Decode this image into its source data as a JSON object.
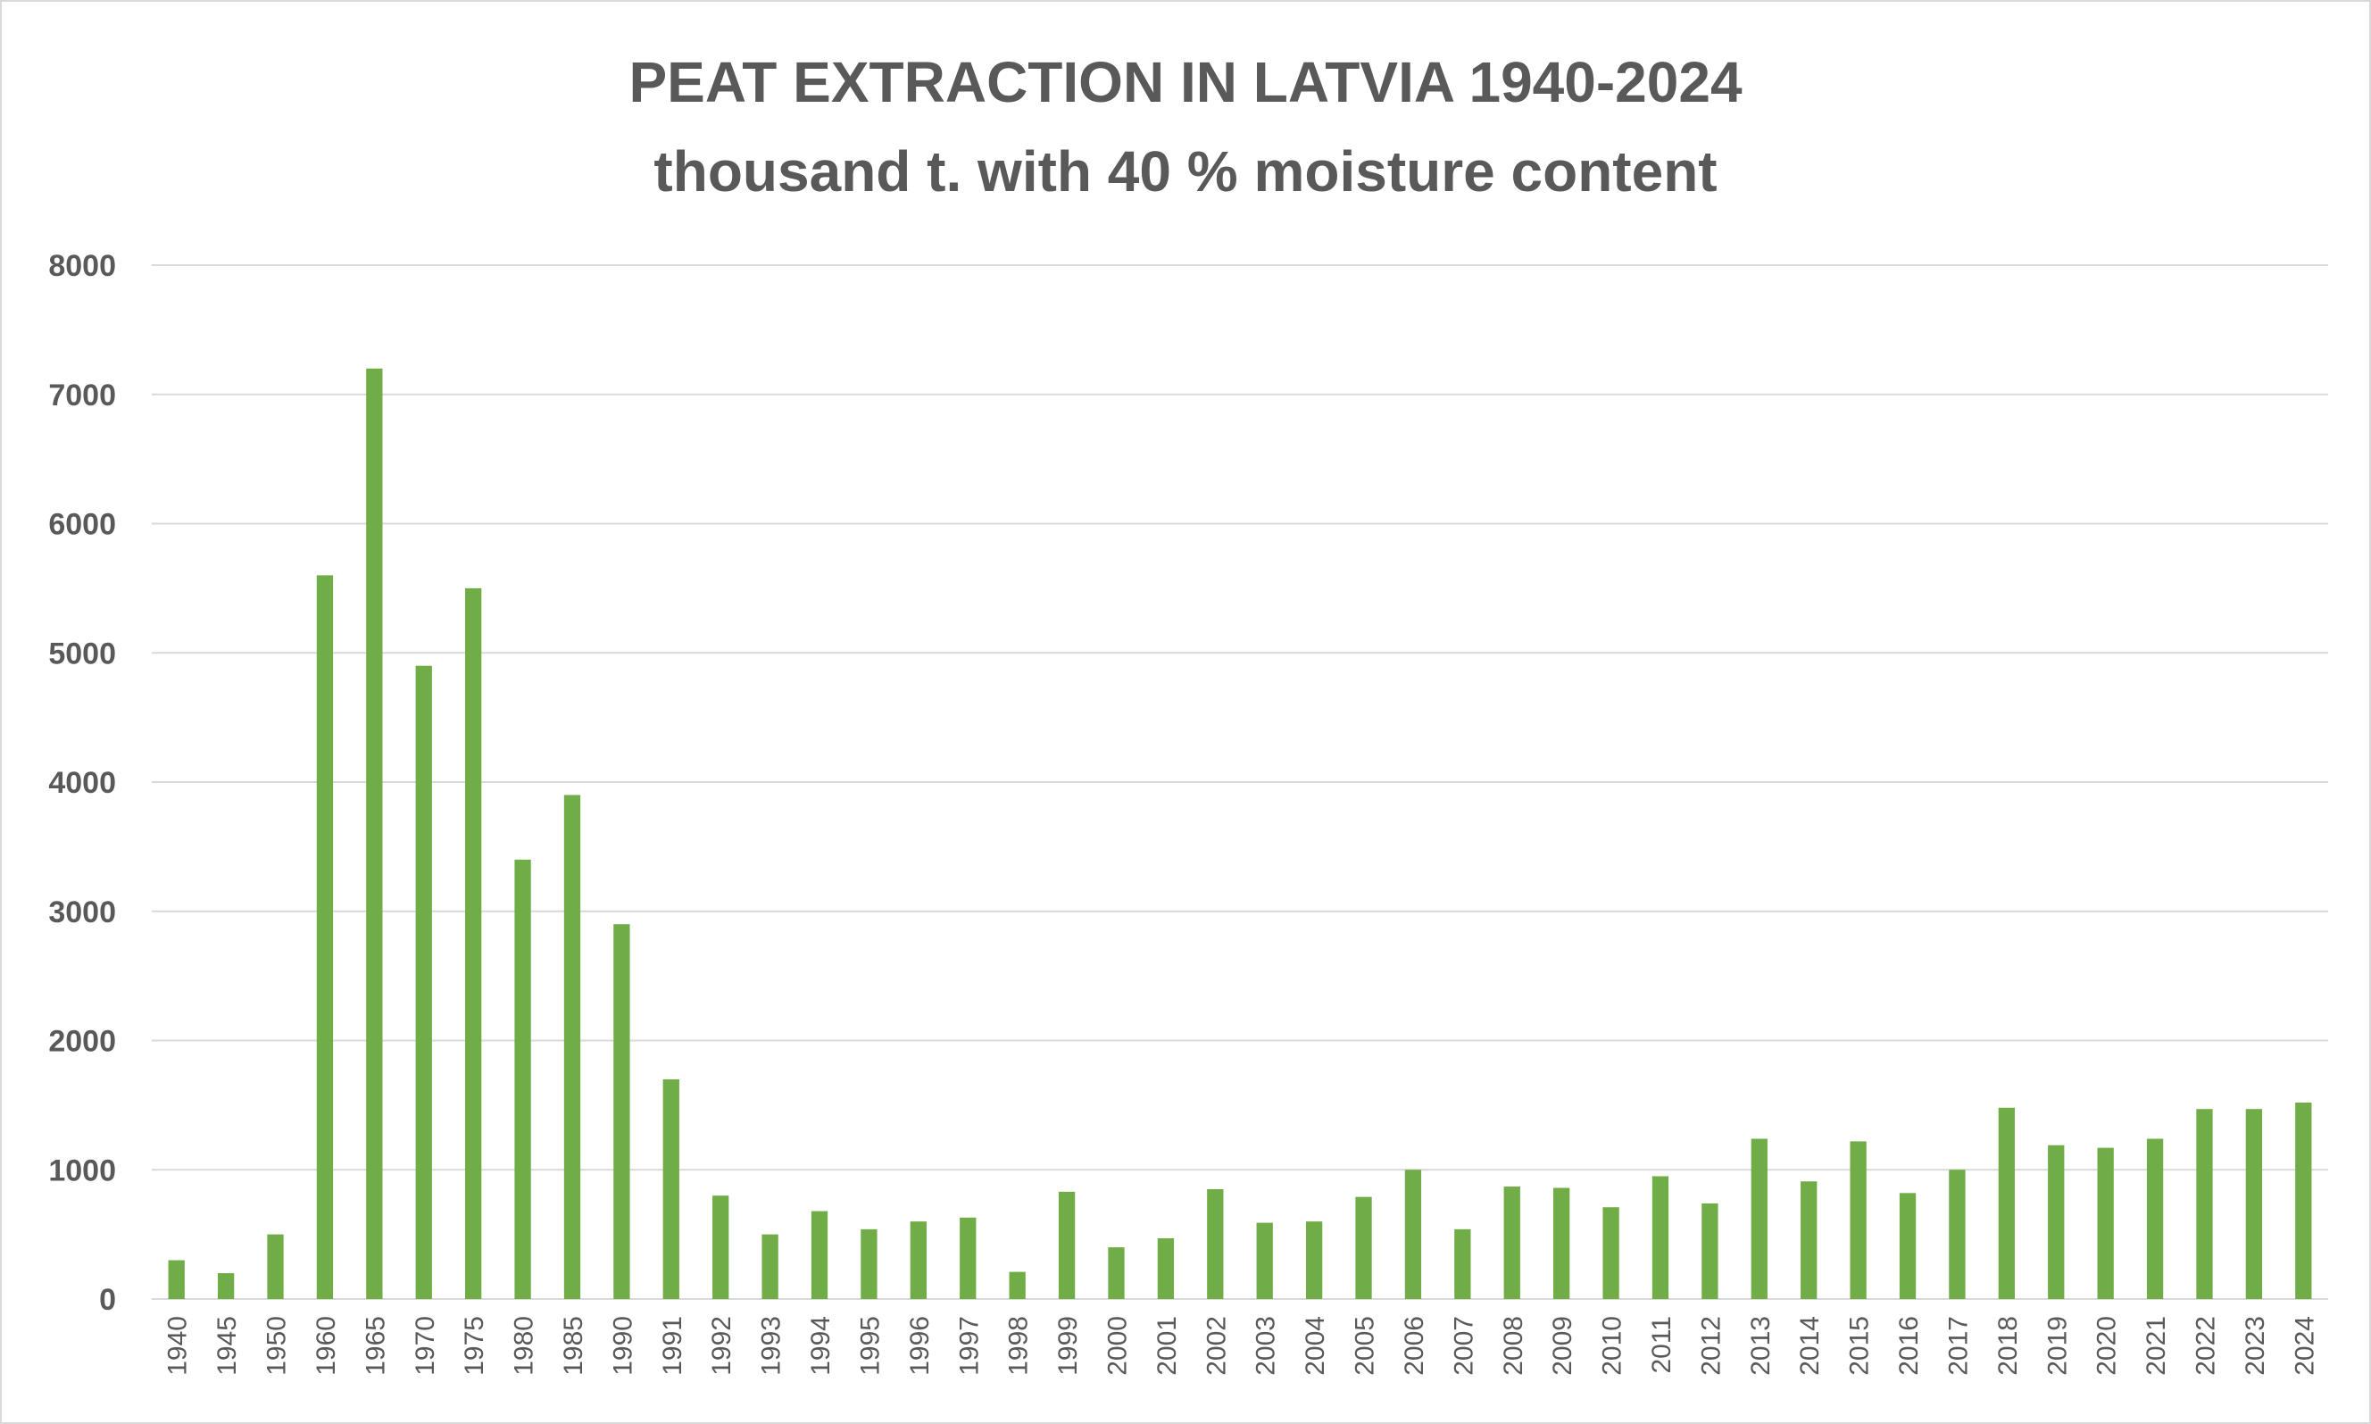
{
  "chart_data": {
    "type": "bar",
    "title": "PEAT EXTRACTION IN LATVIA 1940-2024",
    "subtitle": "thousand t. with 40 % moisture content",
    "xlabel": "",
    "ylabel": "",
    "ylim": [
      0,
      8000
    ],
    "yticks": [
      0,
      1000,
      2000,
      3000,
      4000,
      5000,
      6000,
      7000,
      8000
    ],
    "grid": true,
    "legend": "none",
    "bar_color": "#70ad47",
    "categories": [
      "1940",
      "1945",
      "1950",
      "1960",
      "1965",
      "1970",
      "1975",
      "1980",
      "1985",
      "1990",
      "1991",
      "1992",
      "1993",
      "1994",
      "1995",
      "1996",
      "1997",
      "1998",
      "1999",
      "2000",
      "2001",
      "2002",
      "2003",
      "2004",
      "2005",
      "2006",
      "2007",
      "2008",
      "2009",
      "2010",
      "2011",
      "2012",
      "2013",
      "2014",
      "2015",
      "2016",
      "2017",
      "2018",
      "2019",
      "2020",
      "2021",
      "2022",
      "2023",
      "2024"
    ],
    "values": [
      300,
      200,
      500,
      5600,
      7200,
      4900,
      5500,
      3400,
      3900,
      2900,
      1700,
      800,
      500,
      680,
      540,
      600,
      630,
      210,
      830,
      400,
      470,
      850,
      590,
      600,
      790,
      1000,
      540,
      870,
      860,
      710,
      950,
      740,
      1240,
      910,
      1220,
      820,
      1000,
      1480,
      1190,
      1170,
      1240,
      1470,
      1470,
      1520
    ]
  }
}
